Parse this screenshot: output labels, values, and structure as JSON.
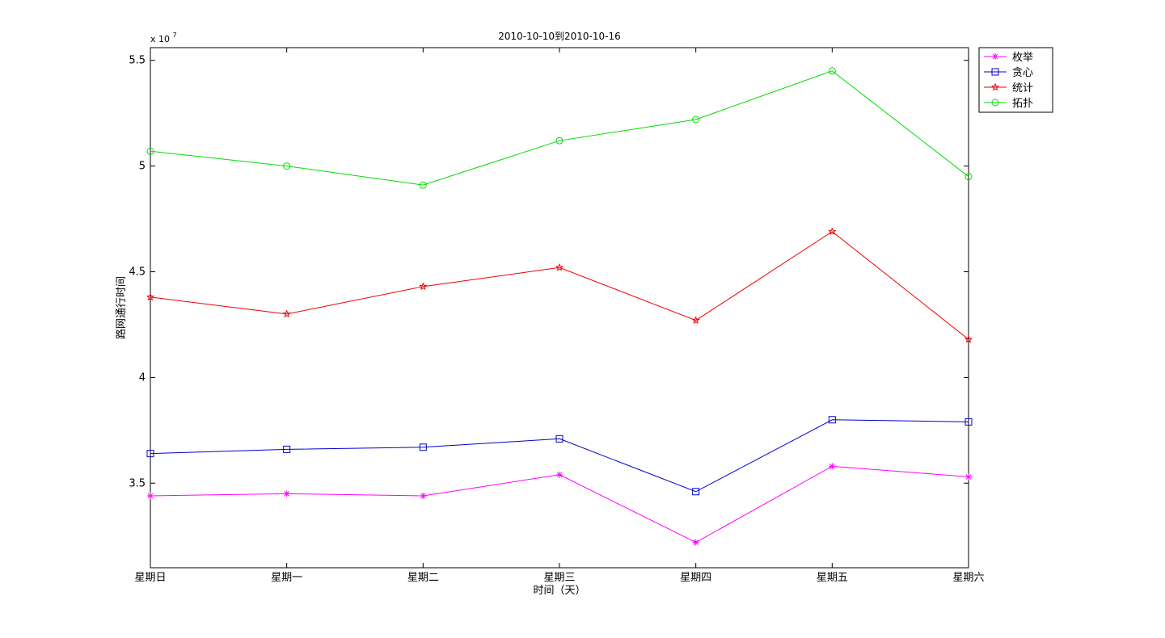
{
  "chart_data": {
    "type": "line",
    "title": "2010-10-10到2010-10-16",
    "xlabel": "时间（天）",
    "ylabel": "路网通行时间",
    "y_multiplier_label": "x 10",
    "y_multiplier_exponent": "7",
    "y_scale": 10000000,
    "categories": [
      "星期日",
      "星期一",
      "星期二",
      "星期三",
      "星期四",
      "星期五",
      "星期六"
    ],
    "ylim": [
      31000000,
      55600000
    ],
    "yticks": [
      35000000,
      40000000,
      45000000,
      50000000,
      55000000
    ],
    "ytick_labels": [
      "3.5",
      "4",
      "4.5",
      "5",
      "5.5"
    ],
    "grid": false,
    "legend_position": "outside-top-right",
    "series": [
      {
        "name": "枚举",
        "color": "#ff00ff",
        "marker": "asterisk",
        "values": [
          34400000,
          34500000,
          34400000,
          35400000,
          32200000,
          35800000,
          35300000
        ]
      },
      {
        "name": "贪心",
        "color": "#0000cc",
        "marker": "square",
        "values": [
          36400000,
          36600000,
          36700000,
          37100000,
          34600000,
          38000000,
          37900000
        ]
      },
      {
        "name": "统计",
        "color": "#ee0000",
        "marker": "star",
        "values": [
          43800000,
          43000000,
          44300000,
          45200000,
          42700000,
          46900000,
          41800000
        ]
      },
      {
        "name": "拓扑",
        "color": "#00dd00",
        "marker": "circle",
        "values": [
          50700000,
          50000000,
          49100000,
          51200000,
          52200000,
          54500000,
          49500000
        ]
      }
    ]
  }
}
